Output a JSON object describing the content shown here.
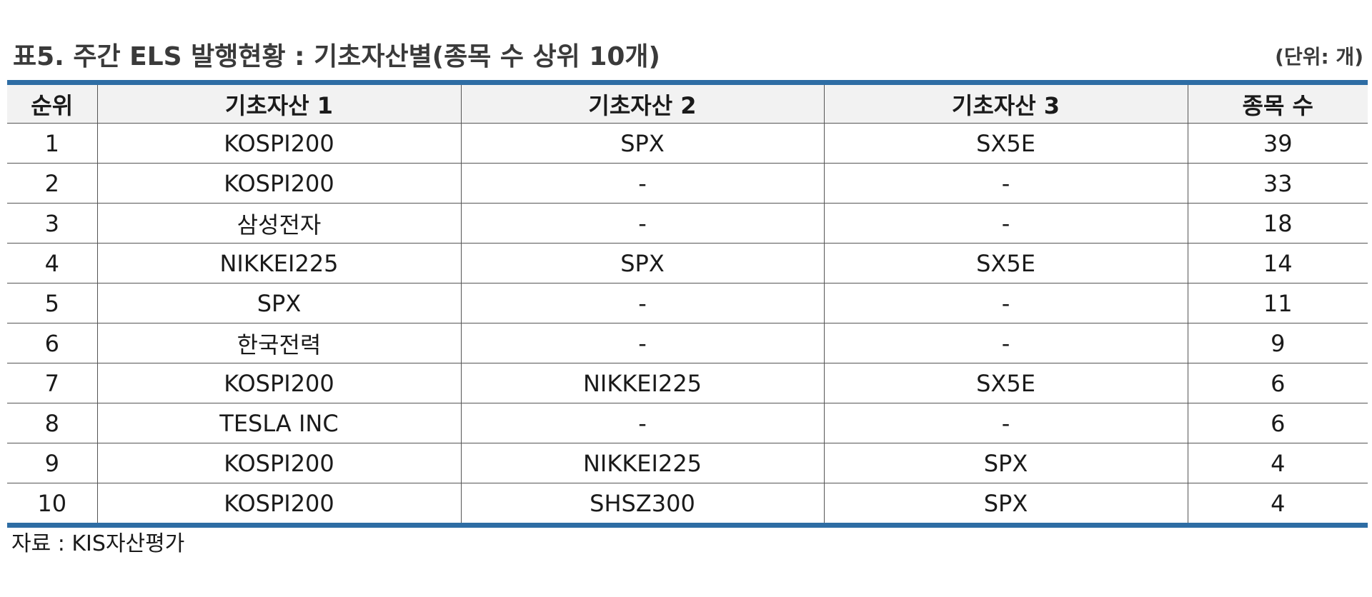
{
  "title": "표5. 주간 ELS 발행현황 : 기초자산별(종목 수 상위 10개)",
  "unit": "(단위: 개)",
  "table": {
    "headers": [
      "순위",
      "기초자산 1",
      "기초자산 2",
      "기초자산 3",
      "종목 수"
    ],
    "rows": [
      [
        "1",
        "KOSPI200",
        "SPX",
        "SX5E",
        "39"
      ],
      [
        "2",
        "KOSPI200",
        "-",
        "-",
        "33"
      ],
      [
        "3",
        "삼성전자",
        "-",
        "-",
        "18"
      ],
      [
        "4",
        "NIKKEI225",
        "SPX",
        "SX5E",
        "14"
      ],
      [
        "5",
        "SPX",
        "-",
        "-",
        "11"
      ],
      [
        "6",
        "한국전력",
        "-",
        "-",
        "9"
      ],
      [
        "7",
        "KOSPI200",
        "NIKKEI225",
        "SX5E",
        "6"
      ],
      [
        "8",
        "TESLA INC",
        "-",
        "-",
        "6"
      ],
      [
        "9",
        "KOSPI200",
        "NIKKEI225",
        "SPX",
        "4"
      ],
      [
        "10",
        "KOSPI200",
        "SHSZ300",
        "SPX",
        "4"
      ]
    ]
  },
  "source": "자료 : KIS자산평가",
  "colors": {
    "rule": "#2e6da4",
    "header_bg": "#f2f2f2"
  }
}
